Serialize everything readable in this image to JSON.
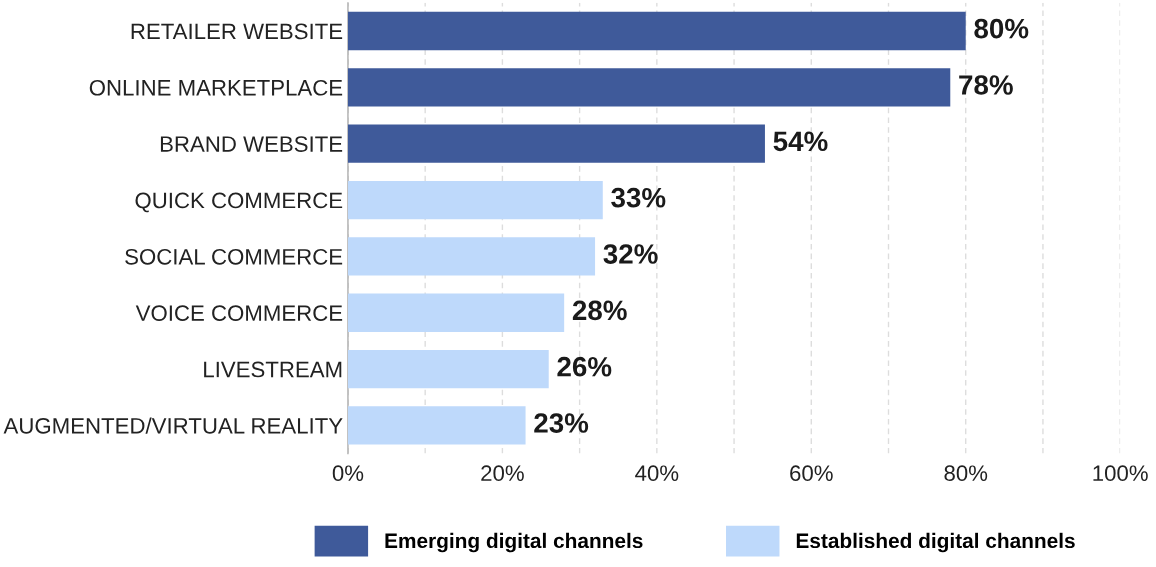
{
  "chart_data": {
    "type": "bar",
    "orientation": "horizontal",
    "categories": [
      "RETAILER WEBSITE",
      "ONLINE MARKETPLACE",
      "BRAND WEBSITE",
      "QUICK COMMERCE",
      "SOCIAL COMMERCE",
      "VOICE COMMERCE",
      "LIVESTREAM",
      "AUGMENTED/VIRTUAL REALITY"
    ],
    "series": [
      {
        "name": "Emerging digital channels",
        "color": "#3f5a9a",
        "values": [
          80,
          78,
          54,
          null,
          null,
          null,
          null,
          null
        ]
      },
      {
        "name": "Established digital channels",
        "color": "#bed9fb",
        "values": [
          null,
          null,
          null,
          33,
          32,
          28,
          26,
          23
        ]
      }
    ],
    "value_labels": [
      "80%",
      "78%",
      "54%",
      "33%",
      "32%",
      "28%",
      "26%",
      "23%"
    ],
    "xlim": [
      0,
      100
    ],
    "xticks": [
      {
        "value": 0,
        "label": "0%"
      },
      {
        "value": 10,
        "label": null
      },
      {
        "value": 20,
        "label": "20%"
      },
      {
        "value": 30,
        "label": null
      },
      {
        "value": 40,
        "label": "40%"
      },
      {
        "value": 50,
        "label": null
      },
      {
        "value": 60,
        "label": "60%"
      },
      {
        "value": 70,
        "label": null
      },
      {
        "value": 80,
        "label": "80%"
      },
      {
        "value": 90,
        "label": null
      },
      {
        "value": 100,
        "label": "100%"
      }
    ],
    "grid": "x",
    "legend": "bottom"
  }
}
